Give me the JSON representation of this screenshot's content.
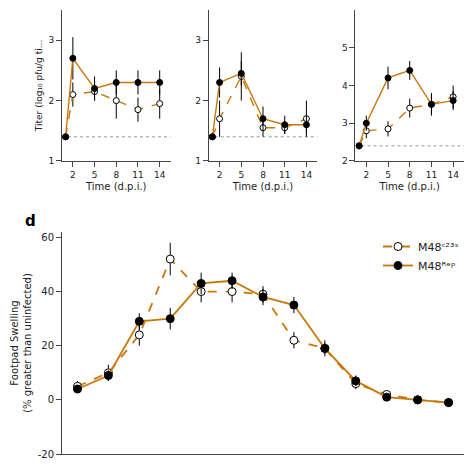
{
  "chart_data": [
    {
      "type": "line",
      "x_label": "Time (d.p.i.)",
      "y_label": "Titer (log₁₀ pfu/g ti...",
      "x": [
        1,
        2,
        5,
        8,
        11,
        14
      ],
      "xlim": [
        0.5,
        15.5
      ],
      "xticks": [
        2,
        5,
        8,
        11,
        14
      ],
      "ylim": [
        1,
        3.5
      ],
      "yticks": [
        1,
        2,
        3
      ],
      "grid": false,
      "reference_line": 1.4,
      "series": [
        {
          "color": "#C8780A",
          "marker": "open",
          "line_style": "dashed",
          "values": [
            1.4,
            2.1,
            2.15,
            2.0,
            1.85,
            1.95
          ],
          "yerr": [
            0.0,
            0.2,
            0.15,
            0.3,
            0.2,
            0.25
          ]
        },
        {
          "color": "#C8780A",
          "marker": "filled",
          "line_style": "solid",
          "values": [
            1.4,
            2.7,
            2.2,
            2.3,
            2.3,
            2.3
          ],
          "yerr": [
            0.0,
            0.35,
            0.2,
            0.2,
            0.2,
            0.2
          ]
        }
      ]
    },
    {
      "type": "line",
      "x_label": "Time (d.p.i.)",
      "x": [
        1,
        2,
        5,
        8,
        11,
        14
      ],
      "xlim": [
        0.5,
        15.5
      ],
      "xticks": [
        2,
        5,
        8,
        11,
        14
      ],
      "ylim": [
        1,
        3.5
      ],
      "yticks": [
        1,
        2,
        3
      ],
      "grid": false,
      "reference_line": 1.4,
      "series": [
        {
          "color": "#C8780A",
          "marker": "open",
          "line_style": "dashed",
          "values": [
            1.4,
            1.7,
            2.4,
            1.55,
            1.55,
            1.7
          ],
          "yerr": [
            0.0,
            0.3,
            0.4,
            0.15,
            0.1,
            0.3
          ]
        },
        {
          "color": "#C8780A",
          "marker": "filled",
          "line_style": "solid",
          "values": [
            1.4,
            2.3,
            2.45,
            1.7,
            1.6,
            1.6
          ],
          "yerr": [
            0.0,
            0.25,
            0.2,
            0.2,
            0.15,
            0.15
          ]
        }
      ]
    },
    {
      "type": "line",
      "x_label": "Time (d.p.i.)",
      "x": [
        1,
        2,
        5,
        8,
        11,
        14
      ],
      "xlim": [
        0.5,
        15.5
      ],
      "xticks": [
        2,
        5,
        8,
        11,
        14
      ],
      "ylim": [
        2,
        6
      ],
      "yticks": [
        2,
        3,
        4,
        5
      ],
      "grid": false,
      "reference_line": 2.4,
      "series": [
        {
          "color": "#C8780A",
          "marker": "open",
          "line_style": "dashed",
          "values": [
            2.4,
            2.8,
            2.85,
            3.4,
            3.5,
            3.7
          ],
          "yerr": [
            0.0,
            0.2,
            0.2,
            0.25,
            0.3,
            0.3
          ]
        },
        {
          "color": "#C8780A",
          "marker": "filled",
          "line_style": "solid",
          "values": [
            2.4,
            3.0,
            4.2,
            4.4,
            3.5,
            3.6
          ],
          "yerr": [
            0.0,
            0.2,
            0.3,
            0.25,
            0.25,
            0.25
          ]
        }
      ]
    },
    {
      "type": "line",
      "y_label": "Footpad Swelling\n(% greater than uninfected)",
      "annotations": [
        "d"
      ],
      "x": [
        1,
        2,
        3,
        4,
        5,
        6,
        7,
        8,
        9,
        10,
        11,
        12,
        13
      ],
      "xlim": [
        0.5,
        13.5
      ],
      "ylim": [
        -20,
        62
      ],
      "yticks": [
        -20,
        0,
        20,
        40,
        60
      ],
      "tick_labels": "y",
      "grid": false,
      "legend": "upper right",
      "series": [
        {
          "name": "M48ᶜ²³ˢ",
          "color": "#C8780A",
          "marker": "open",
          "line_style": "dashed",
          "values": [
            5,
            10,
            24,
            52,
            40,
            40,
            39,
            22,
            19,
            6,
            2,
            0,
            -1
          ],
          "yerr": [
            2,
            3,
            4,
            6,
            4,
            4,
            3,
            3,
            3,
            2,
            1,
            0.5,
            0.5
          ]
        },
        {
          "name": "M48ᴿᵉᵖ",
          "color": "#C8780A",
          "marker": "filled",
          "line_style": "solid",
          "values": [
            4,
            9,
            29,
            30,
            43,
            44,
            38,
            35,
            19,
            7,
            1,
            0,
            -1
          ],
          "yerr": [
            1,
            2,
            3,
            4,
            4,
            3,
            3,
            3,
            2,
            2,
            1,
            0.5,
            0.5
          ]
        }
      ]
    }
  ]
}
